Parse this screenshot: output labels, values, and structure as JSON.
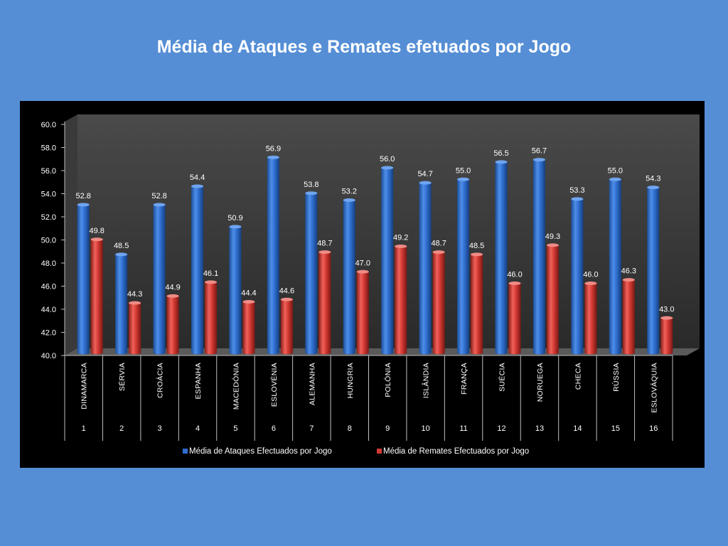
{
  "slide": {
    "title": "Média de Ataques e Remates efetuados por Jogo"
  },
  "colors": {
    "background": "#558ED5",
    "chart_background": "#000000",
    "attacks": "#2F6FD0",
    "shots": "#D43A34"
  },
  "chart_data": {
    "type": "bar",
    "title": "Média de Ataques e Remates efetuados por Jogo",
    "xlabel": "",
    "ylabel": "",
    "ylim": [
      40,
      60
    ],
    "yticks": [
      "40.0",
      "42.0",
      "44.0",
      "46.0",
      "48.0",
      "50.0",
      "52.0",
      "54.0",
      "56.0",
      "58.0",
      "60.0"
    ],
    "categories": [
      "DINAMARCA",
      "SÉRVIA",
      "CROÁCIA",
      "ESPANHA",
      "MACEDÓNIA",
      "ESLOVÉNIA",
      "ALEMANHA",
      "HUNGRIA",
      "POLÓNIA",
      "ISLÂNDIA",
      "FRANÇA",
      "SUÉCIA",
      "NORUEGA",
      "CHECA",
      "RÚSSIA",
      "ESLOVÁQUIA"
    ],
    "category_numbers": [
      "1",
      "2",
      "3",
      "4",
      "5",
      "6",
      "7",
      "8",
      "9",
      "10",
      "11",
      "12",
      "13",
      "14",
      "15",
      "16"
    ],
    "series": [
      {
        "name": "Média de Ataques Efectuados por Jogo",
        "values": [
          52.8,
          48.5,
          52.8,
          54.4,
          50.9,
          56.9,
          53.8,
          53.2,
          56.0,
          54.7,
          55.0,
          56.5,
          56.7,
          53.3,
          55.0,
          54.3
        ]
      },
      {
        "name": "Média de Remates Efectuados por Jogo",
        "values": [
          49.8,
          44.3,
          44.9,
          46.1,
          44.4,
          44.6,
          48.7,
          47.0,
          49.2,
          48.7,
          48.5,
          46.0,
          49.3,
          46.0,
          46.3,
          43.0
        ]
      }
    ],
    "legend_position": "bottom",
    "grid": false
  }
}
